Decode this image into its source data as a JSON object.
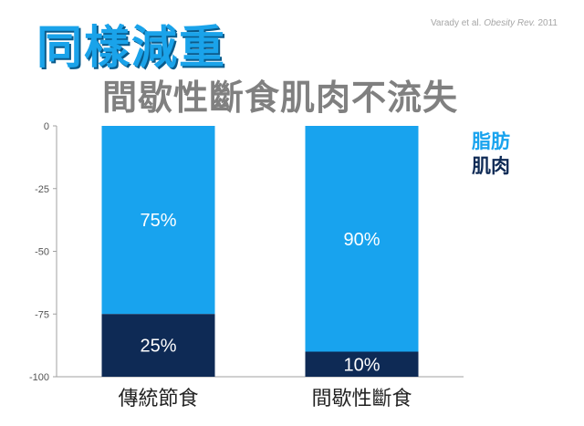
{
  "title": "同樣減重",
  "subtitle": "間歇性斷食肌肉不流失",
  "source": {
    "authors": "Varady et al.",
    "journal": "Obesity Rev.",
    "year": "2011"
  },
  "colors": {
    "fat": "#18a3ee",
    "muscle": "#0e2a55",
    "axis": "#a0a0a0",
    "grid": "#dddddd"
  },
  "chart_data": {
    "type": "bar",
    "stacked": true,
    "categories": [
      "傳統節食",
      "間歇性斷食"
    ],
    "series": [
      {
        "name": "脂肪",
        "values": [
          -75,
          -90
        ],
        "labels": [
          "75%",
          "90%"
        ]
      },
      {
        "name": "肌肉",
        "values": [
          -25,
          -10
        ],
        "labels": [
          "25%",
          "10%"
        ]
      }
    ],
    "ylim": [
      -100,
      0
    ],
    "yticks": [
      0,
      -25,
      -50,
      -75,
      -100
    ],
    "legend_position": "right",
    "grid": false
  }
}
